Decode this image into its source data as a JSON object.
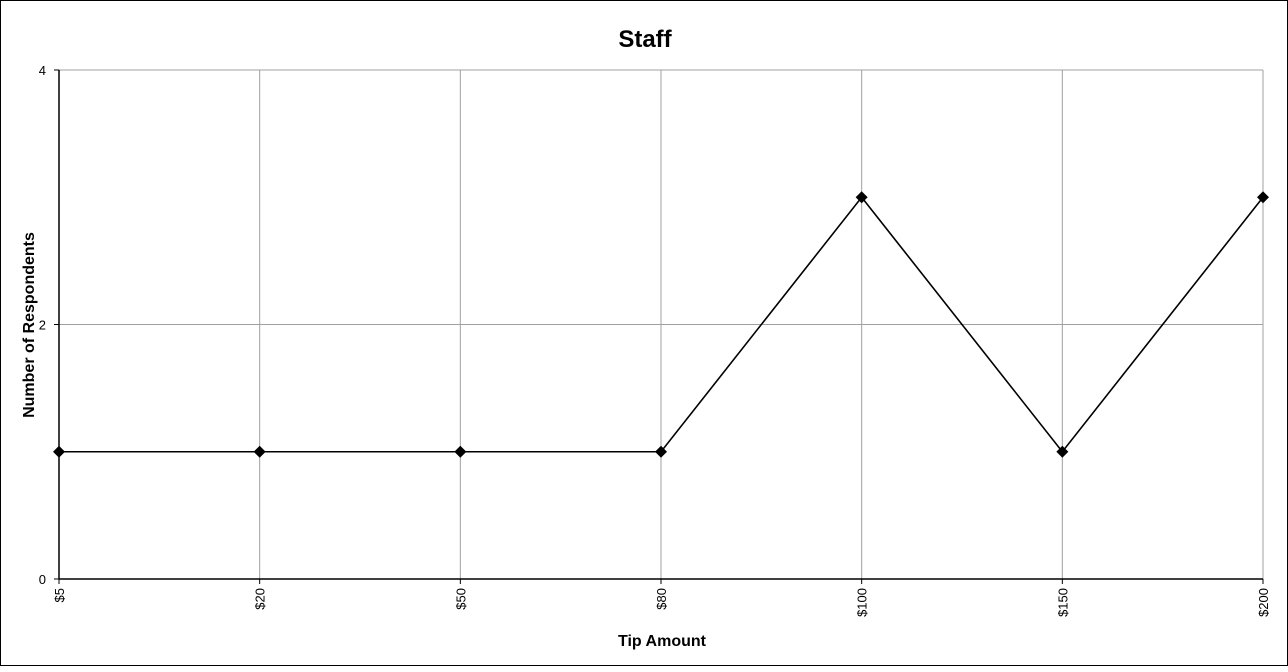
{
  "chart_data": {
    "type": "line",
    "title": "Staff",
    "xlabel": "Tip Amount",
    "ylabel": "Number of Respondents",
    "categories": [
      "$5",
      "$20",
      "$50",
      "$80",
      "$100",
      "$150",
      "$200"
    ],
    "series": [
      {
        "values": [
          1,
          1,
          1,
          1,
          3,
          1,
          3
        ]
      }
    ],
    "ylim": [
      0,
      4
    ],
    "yticks": [
      "0",
      "2",
      "4"
    ],
    "grid": true,
    "legend": "none",
    "colors": {
      "line": "#000000",
      "marker": "#000000",
      "grid": "#a0a0a0",
      "axis": "#000000"
    }
  }
}
